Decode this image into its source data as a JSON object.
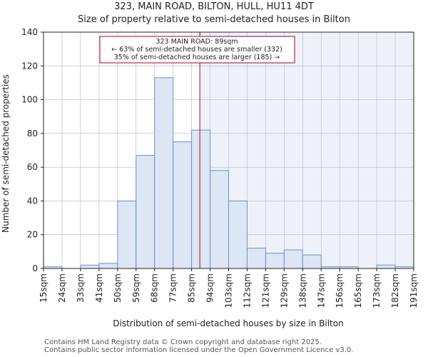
{
  "chart_data": {
    "type": "histogram",
    "title": "323, MAIN ROAD, BILTON, HULL, HU11 4DT",
    "subtitle": "Size of property relative to semi-detached houses in Bilton",
    "xlabel": "Distribution of semi-detached houses by size in Bilton",
    "ylabel": "Number of semi-detached properties",
    "categories": [
      "15sqm",
      "24sqm",
      "33sqm",
      "41sqm",
      "50sqm",
      "59sqm",
      "68sqm",
      "77sqm",
      "85sqm",
      "94sqm",
      "103sqm",
      "112sqm",
      "121sqm",
      "129sqm",
      "138sqm",
      "147sqm",
      "156sqm",
      "165sqm",
      "173sqm",
      "182sqm",
      "191sqm"
    ],
    "values": [
      1,
      0,
      2,
      3,
      40,
      67,
      113,
      75,
      82,
      58,
      40,
      12,
      9,
      11,
      8,
      1,
      1,
      0,
      2,
      1
    ],
    "ylim": [
      0,
      140
    ],
    "yticks": [
      0,
      20,
      40,
      60,
      80,
      100,
      120,
      140
    ],
    "grid": true,
    "bar_color": "#dde6f5",
    "bar_edge": "#6f8fc6",
    "highlight_color": "#b0001e",
    "marker_value_sqm": 89,
    "annotation": {
      "line1": "323 MAIN ROAD: 89sqm",
      "line2": "← 63% of semi-detached houses are smaller (332)",
      "line3": "35% of semi-detached houses are larger (185) →"
    }
  },
  "footer": {
    "line1": "Contains HM Land Registry data © Crown copyright and database right 2025.",
    "line2": "Contains public sector information licensed under the Open Government Licence v3.0."
  }
}
